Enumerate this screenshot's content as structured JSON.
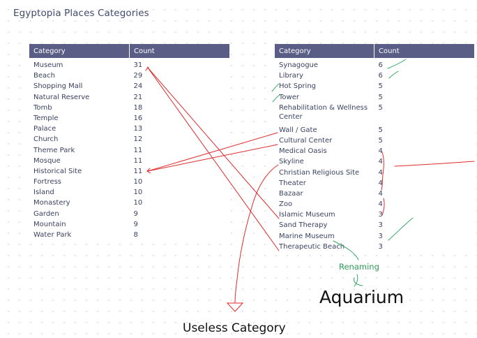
{
  "page_title": "Egyptopia Places Categories",
  "left_table": {
    "headers": {
      "category": "Category",
      "count": "Count"
    },
    "rows": [
      {
        "category": "Museum",
        "count": "31"
      },
      {
        "category": "Beach",
        "count": "29"
      },
      {
        "category": "Shopping Mall",
        "count": "24"
      },
      {
        "category": "Natural Reserve",
        "count": "21"
      },
      {
        "category": "Tomb",
        "count": "18"
      },
      {
        "category": "Temple",
        "count": "16"
      },
      {
        "category": "Palace",
        "count": "13"
      },
      {
        "category": "Church",
        "count": "12"
      },
      {
        "category": "Theme Park",
        "count": "11"
      },
      {
        "category": "Mosque",
        "count": "11"
      },
      {
        "category": "Historical Site",
        "count": "11"
      },
      {
        "category": "Fortress",
        "count": "10"
      },
      {
        "category": "Island",
        "count": "10"
      },
      {
        "category": "Monastery",
        "count": "10"
      },
      {
        "category": "Garden",
        "count": "9"
      },
      {
        "category": "Mountain",
        "count": "9"
      },
      {
        "category": "Water Park",
        "count": "8"
      }
    ]
  },
  "right_table": {
    "headers": {
      "category": "Category",
      "count": "Count"
    },
    "rows": [
      {
        "category": "Synagogue",
        "count": "6"
      },
      {
        "category": "Library",
        "count": "6"
      },
      {
        "category": "Hot Spring",
        "count": "5"
      },
      {
        "category": "Tower",
        "count": "5"
      },
      {
        "category": "Rehabilitation & Wellness",
        "category_line2": "Center",
        "count": "5"
      },
      {
        "category": "Wall / Gate",
        "count": "5"
      },
      {
        "category": "Cultural Center",
        "count": "5"
      },
      {
        "category": "Medical Oasis",
        "count": "4"
      },
      {
        "category": "Skyline",
        "count": "4"
      },
      {
        "category": "Christian Religious Site",
        "count": "4"
      },
      {
        "category": "Theater",
        "count": "4"
      },
      {
        "category": "Bazaar",
        "count": "4"
      },
      {
        "category": "Zoo",
        "count": "4"
      },
      {
        "category": "Islamic Museum",
        "count": "3"
      },
      {
        "category": "Sand Therapy",
        "count": "3"
      },
      {
        "category": "Marine Museum",
        "count": "3"
      },
      {
        "category": "Therapeutic Beach",
        "count": "3"
      }
    ]
  },
  "annotations": {
    "renaming": "Renaming",
    "aquarium": "Aquarium",
    "useless_category": "Useless Category",
    "colors": {
      "red": "#e02a2a",
      "green": "#35a865",
      "header": "#5a5e86"
    }
  }
}
